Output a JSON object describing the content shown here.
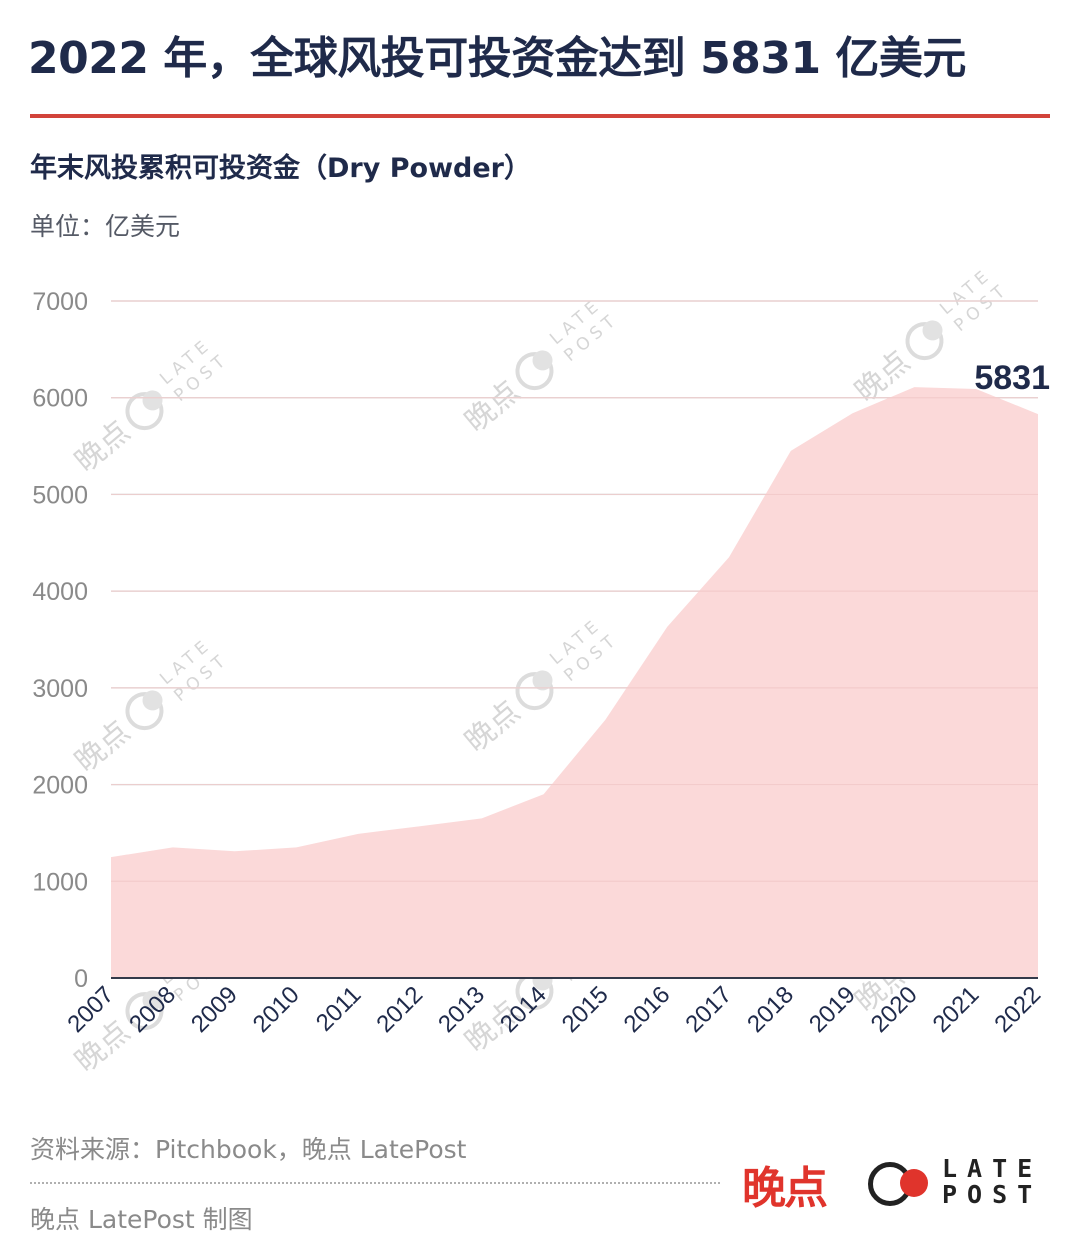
{
  "header": {
    "title": "2022 年，全球风投可投资金达到 5831 亿美元",
    "subtitle": "年末风投累积可投资金（Dry Powder）",
    "unit": "单位：亿美元"
  },
  "footer": {
    "source": "资料来源：Pitchbook，晚点 LatePost",
    "credit": "晚点 LatePost 制图",
    "logo_cn": "晚点",
    "logo_en_line1": "LATE",
    "logo_en_line2": "POST"
  },
  "watermark": {
    "cn": "晚点",
    "en_line1": "LATE",
    "en_line2": "POST"
  },
  "colors": {
    "title": "#1f2a4a",
    "rule": "#d2433a",
    "area_fill": "#fbd9d9",
    "grid": "#e2e2e2",
    "axis": "#333a4a",
    "logo_red": "#e0342c"
  },
  "chart_data": {
    "type": "area",
    "title": "年末风投累积可投资金（Dry Powder）",
    "xlabel": "",
    "ylabel": "单位：亿美元",
    "categories": [
      "2007",
      "2008",
      "2009",
      "2010",
      "2011",
      "2012",
      "2013",
      "2014",
      "2015",
      "2016",
      "2017",
      "2018",
      "2019",
      "2020",
      "2021",
      "2022"
    ],
    "series": [
      {
        "name": "年末风投累积可投资金",
        "values": [
          1250,
          1350,
          1310,
          1350,
          1490,
          1570,
          1650,
          1900,
          2670,
          3630,
          4350,
          5450,
          5840,
          6110,
          6090,
          5831
        ]
      }
    ],
    "y_ticks": [
      "0",
      "1000",
      "2000",
      "3000",
      "4000",
      "5000",
      "6000",
      "7000"
    ],
    "ylim": [
      0,
      7000
    ],
    "grid": true,
    "legend": "none",
    "annotations": [
      {
        "x": "2022",
        "label": "5831"
      }
    ]
  }
}
